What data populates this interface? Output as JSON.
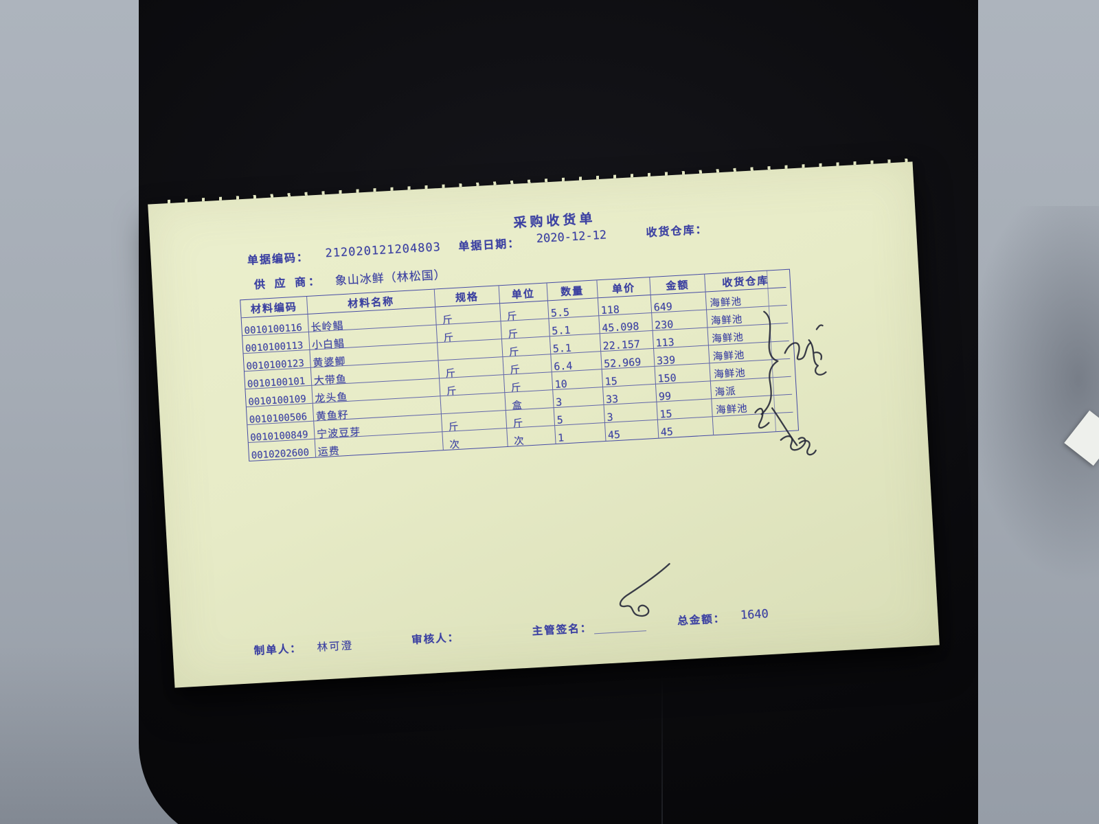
{
  "scene": {
    "surface_color": "#a7aeb7",
    "mat_color": "#0b0b0e",
    "paper_color": "#e7ebc7",
    "ink_color": "#3c41a2",
    "pen_color": "#262838"
  },
  "receipt": {
    "title": "采购收货单",
    "header": {
      "doc_code_label": "单据编码：",
      "doc_code": "212020121204803",
      "doc_date_label": "单据日期：",
      "doc_date": "2020-12-12",
      "warehouse_label": "收货仓库：",
      "supplier_label": "供 应 商：",
      "supplier": "象山冰鲜（林松国）"
    },
    "table": {
      "headers": [
        "材料编码",
        "材料名称",
        "规格",
        "单位",
        "数量",
        "单价",
        "金额",
        "收货仓库"
      ],
      "rows": [
        [
          "0010100116",
          "长岭鲳",
          "斤",
          "斤",
          "5.5",
          "118",
          "649",
          "海鲜池"
        ],
        [
          "0010100113",
          "小白鲳",
          "斤",
          "斤",
          "5.1",
          "45.098",
          "230",
          "海鲜池"
        ],
        [
          "0010100123",
          "黄婆鲫",
          "",
          "斤",
          "5.1",
          "22.157",
          "113",
          "海鲜池"
        ],
        [
          "0010100101",
          "大带鱼",
          "斤",
          "斤",
          "6.4",
          "52.969",
          "339",
          "海鲜池"
        ],
        [
          "0010100109",
          "龙头鱼",
          "斤",
          "斤",
          "10",
          "15",
          "150",
          "海鲜池"
        ],
        [
          "0010100506",
          "黄鱼籽",
          "",
          "盒",
          "3",
          "33",
          "99",
          "海派"
        ],
        [
          "0010100849",
          "宁波豆芽",
          "斤",
          "斤",
          "5",
          "3",
          "15",
          "海鲜池"
        ],
        [
          "0010202600",
          "运费",
          "次",
          "次",
          "1",
          "45",
          "45",
          ""
        ]
      ]
    },
    "footer": {
      "preparer_label": "制单人：",
      "preparer": "林可澄",
      "reviewer_label": "审核人：",
      "reviewer": "",
      "manager_sign_label": "主管签名：",
      "total_label": "总金额：",
      "total": "1640"
    }
  }
}
